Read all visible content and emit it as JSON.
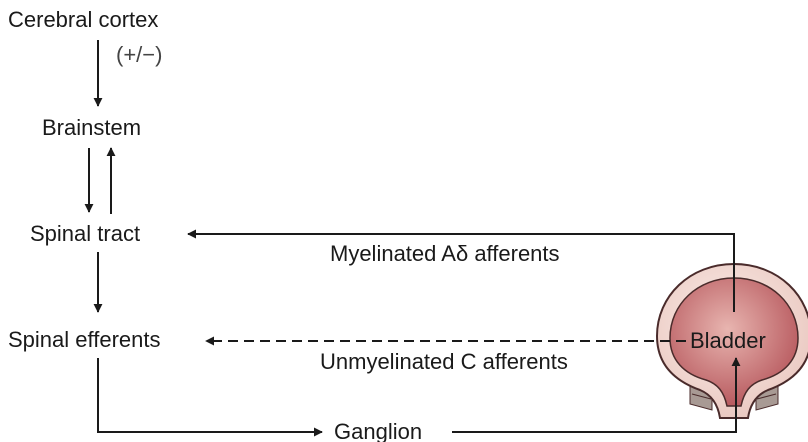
{
  "diagram": {
    "nodes": {
      "cerebral_cortex": "Cerebral cortex",
      "brainstem": "Brainstem",
      "spinal_tract": "Spinal tract",
      "spinal_efferents": "Spinal efferents",
      "ganglion": "Ganglion",
      "bladder": "Bladder"
    },
    "edge_labels": {
      "cortex_modulation": "(+/−)",
      "myelinated": "Myelinated Aδ afferents",
      "unmyelinated": "Unmyelinated C afferents"
    },
    "colors": {
      "line": "#1a1a1a",
      "bladder_outer": "#f4dcd6",
      "bladder_inner": "#c2686c",
      "bladder_inner_light": "#e8b5b0",
      "bladder_outline": "#4a2b2b",
      "sphincter": "#a89a94"
    }
  }
}
